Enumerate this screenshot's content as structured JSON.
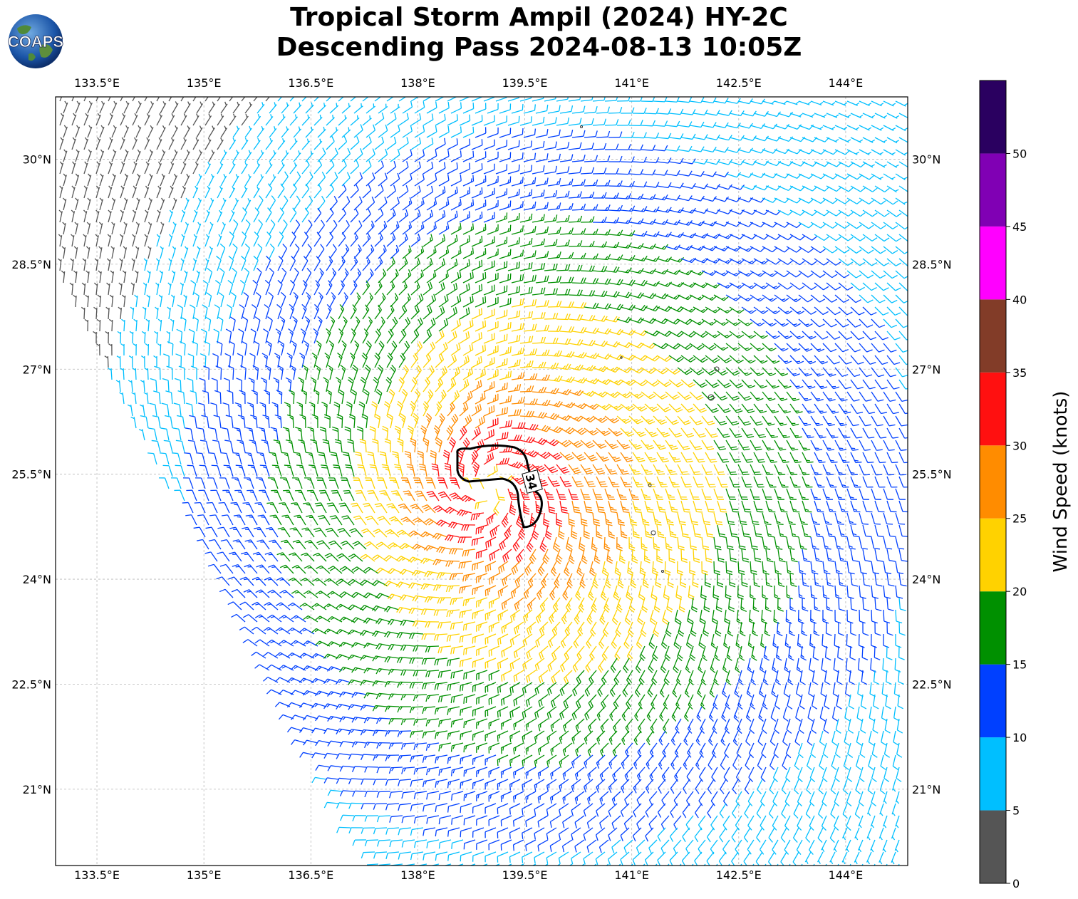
{
  "title": {
    "line1": "Tropical Storm Ampil (2024) HY-2C",
    "line2": "Descending Pass 2024-08-13 10:05Z"
  },
  "logo": {
    "text": "COAPS",
    "icon": "globe-icon"
  },
  "map": {
    "lon_labels": [
      "133.5°E",
      "135°E",
      "136.5°E",
      "138°E",
      "139.5°E",
      "141°E",
      "142.5°E",
      "144°E"
    ],
    "lon_values": [
      133.5,
      135,
      136.5,
      138,
      139.5,
      141,
      142.5,
      144
    ],
    "lat_labels": [
      "30°N",
      "28.5°N",
      "27°N",
      "25.5°N",
      "24°N",
      "22.5°N",
      "21°N"
    ],
    "lat_values": [
      30,
      28.5,
      27,
      25.5,
      24,
      22.5,
      21
    ],
    "lon_range": [
      132.92,
      144.87
    ],
    "lat_range": [
      19.91,
      30.89
    ],
    "storm_center": {
      "lon": 139.0,
      "lat": 25.3
    },
    "contour_label": "34",
    "grid": true
  },
  "colorbar": {
    "label": "Wind Speed (knots)",
    "ticks": [
      "0",
      "5",
      "10",
      "15",
      "20",
      "25",
      "30",
      "35",
      "40",
      "45",
      "50"
    ],
    "bins": [
      {
        "min": 0,
        "max": 5,
        "color": "#555555"
      },
      {
        "min": 5,
        "max": 10,
        "color": "#00bfff"
      },
      {
        "min": 10,
        "max": 15,
        "color": "#0040ff"
      },
      {
        "min": 15,
        "max": 20,
        "color": "#009000"
      },
      {
        "min": 20,
        "max": 25,
        "color": "#ffd200"
      },
      {
        "min": 25,
        "max": 30,
        "color": "#ff8c00"
      },
      {
        "min": 30,
        "max": 35,
        "color": "#ff1010"
      },
      {
        "min": 35,
        "max": 40,
        "color": "#823c28"
      },
      {
        "min": 40,
        "max": 45,
        "color": "#ff00ff"
      },
      {
        "min": 45,
        "max": 50,
        "color": "#8000b4"
      },
      {
        "min": 50,
        "max": 55,
        "color": "#2a0060"
      }
    ]
  },
  "chart_data": {
    "type": "wind-barb-map",
    "variable": "Wind Speed (knots)",
    "storm_center": {
      "lon": 139.0,
      "lat": 25.3
    },
    "max_wind_kt_approx": 38,
    "contour_34kt_label": "34",
    "radial_profile_kt": [
      {
        "radius_deg": 0.4,
        "speed": 34
      },
      {
        "radius_deg": 0.8,
        "speed": 31
      },
      {
        "radius_deg": 1.3,
        "speed": 26
      },
      {
        "radius_deg": 2.0,
        "speed": 22
      },
      {
        "radius_deg": 3.0,
        "speed": 18
      },
      {
        "radius_deg": 4.2,
        "speed": 13
      },
      {
        "radius_deg": 5.5,
        "speed": 8
      }
    ]
  }
}
